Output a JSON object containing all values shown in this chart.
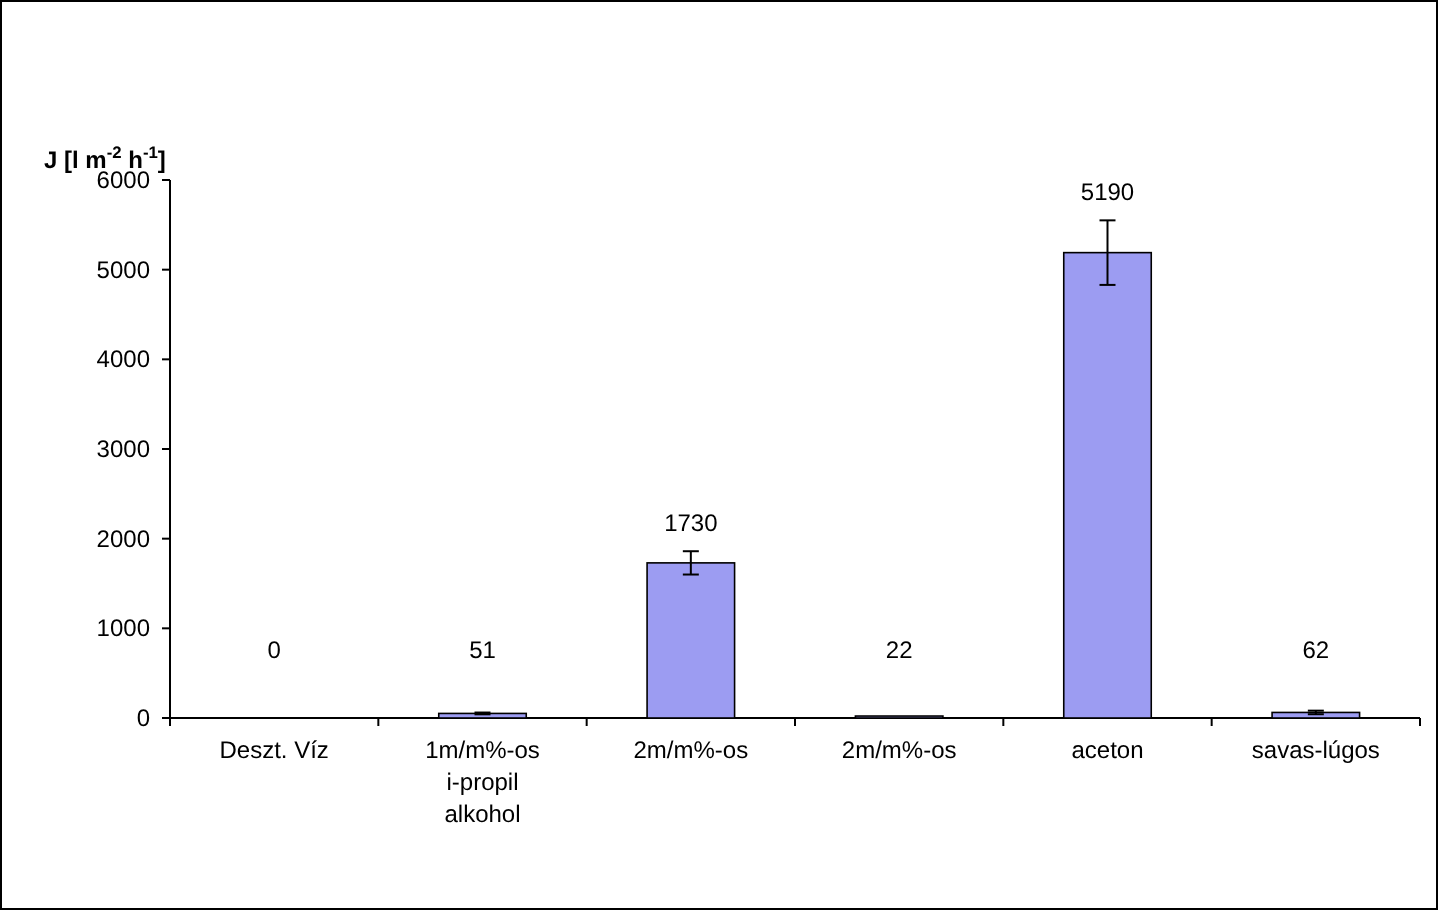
{
  "chart_data": {
    "type": "bar",
    "ylabel": "J [l m$^{-2}$ h$^{-1}$]",
    "categories": [
      "Deszt. Víz",
      "1m/m%-os i-propil alkohol",
      "2m/m%-os",
      "2m/m%-os",
      "aceton",
      "savas-lúgos"
    ],
    "values": [
      0,
      51,
      1730,
      22,
      5190,
      62
    ],
    "errors": [
      null,
      10,
      130,
      null,
      360,
      20
    ],
    "color": "#9c9cf2",
    "ylim": [
      0,
      6000
    ],
    "yticks": [
      0,
      1000,
      2000,
      3000,
      4000,
      5000,
      6000
    ],
    "data_labels": true
  }
}
